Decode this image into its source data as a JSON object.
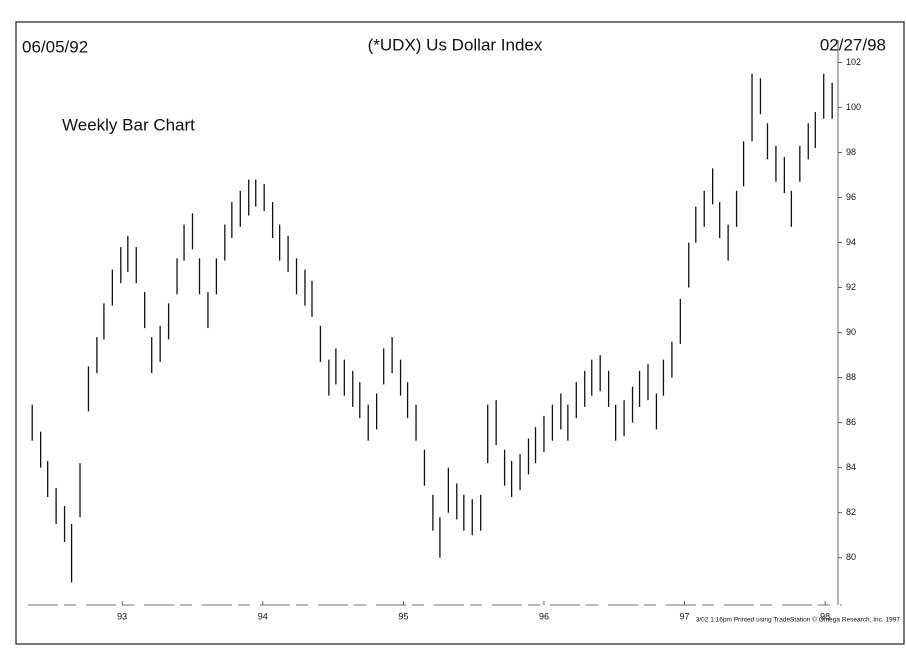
{
  "chart_data": {
    "type": "bar-range",
    "title": "(*UDX) Us Dollar Index",
    "start_date": "06/05/92",
    "end_date": "02/27/98",
    "subtitle": "Weekly Bar Chart",
    "footer": "3/02 1:16pm Printed using TradeStation © Omega Research, Inc. 1997",
    "color": "#111111",
    "x": [
      1992.36,
      1992.42,
      1992.47,
      1992.53,
      1992.59,
      1992.64,
      1992.7,
      1992.76,
      1992.82,
      1992.87,
      1992.93,
      1992.99,
      1993.04,
      1993.1,
      1993.16,
      1993.21,
      1993.27,
      1993.33,
      1993.39,
      1993.44,
      1993.5,
      1993.55,
      1993.61,
      1993.67,
      1993.73,
      1993.78,
      1993.84,
      1993.9,
      1993.95,
      1994.01,
      1994.07,
      1994.12,
      1994.18,
      1994.24,
      1994.3,
      1994.35,
      1994.41,
      1994.47,
      1994.52,
      1994.58,
      1994.64,
      1994.69,
      1994.75,
      1994.81,
      1994.86,
      1994.92,
      1994.98,
      1995.03,
      1995.09,
      1995.15,
      1995.21,
      1995.26,
      1995.32,
      1995.38,
      1995.43,
      1995.49,
      1995.55,
      1995.6,
      1995.66,
      1995.72,
      1995.77,
      1995.83,
      1995.89,
      1995.94,
      1996.0,
      1996.06,
      1996.12,
      1996.17,
      1996.23,
      1996.29,
      1996.34,
      1996.4,
      1996.46,
      1996.51,
      1996.57,
      1996.63,
      1996.68,
      1996.74,
      1996.8,
      1996.85,
      1996.91,
      1996.97,
      1997.03,
      1997.08,
      1997.14,
      1997.2,
      1997.25,
      1997.31,
      1997.37,
      1997.42,
      1997.48,
      1997.54,
      1997.59,
      1997.65,
      1997.71,
      1997.76,
      1997.82,
      1997.88,
      1997.93,
      1997.99,
      1998.05
    ],
    "high": [
      86.8,
      85.6,
      84.3,
      83.1,
      82.3,
      81.5,
      84.2,
      88.5,
      89.8,
      91.3,
      92.8,
      93.8,
      94.3,
      93.8,
      91.8,
      89.8,
      90.3,
      91.3,
      93.3,
      94.8,
      95.3,
      93.3,
      91.8,
      93.3,
      94.8,
      95.8,
      96.3,
      96.8,
      96.8,
      96.6,
      95.8,
      94.8,
      94.3,
      93.3,
      92.8,
      92.3,
      90.3,
      88.8,
      89.3,
      88.8,
      88.3,
      87.8,
      86.8,
      87.3,
      89.3,
      89.8,
      88.8,
      87.8,
      86.8,
      84.8,
      82.8,
      81.8,
      84.0,
      83.3,
      82.8,
      82.6,
      82.8,
      86.8,
      87.0,
      84.8,
      84.3,
      84.6,
      85.3,
      85.8,
      86.3,
      86.8,
      87.3,
      86.8,
      87.8,
      88.3,
      88.8,
      89.0,
      88.3,
      86.8,
      87.0,
      87.6,
      88.3,
      88.6,
      87.3,
      88.8,
      89.6,
      91.5,
      94.0,
      95.6,
      96.3,
      97.3,
      95.8,
      94.8,
      96.3,
      98.5,
      101.5,
      101.3,
      99.3,
      98.3,
      97.8,
      96.3,
      98.3,
      99.3,
      99.8,
      101.5,
      101.1
    ],
    "low": [
      85.2,
      84.0,
      82.7,
      81.5,
      80.7,
      78.9,
      81.8,
      86.5,
      88.2,
      89.7,
      91.2,
      92.2,
      92.7,
      92.2,
      90.2,
      88.2,
      88.7,
      89.7,
      91.7,
      93.2,
      93.7,
      91.7,
      90.2,
      91.7,
      93.2,
      94.2,
      94.7,
      95.2,
      95.6,
      95.4,
      94.2,
      93.2,
      92.7,
      91.7,
      91.2,
      90.7,
      88.7,
      87.2,
      87.7,
      87.2,
      86.7,
      86.2,
      85.2,
      85.7,
      87.7,
      88.2,
      87.2,
      86.2,
      85.2,
      83.2,
      81.2,
      80.0,
      82.0,
      81.7,
      81.2,
      81.0,
      81.2,
      84.2,
      85.0,
      83.2,
      82.7,
      83.0,
      83.7,
      84.2,
      84.7,
      85.2,
      85.7,
      85.2,
      86.2,
      86.7,
      87.2,
      87.4,
      86.7,
      85.2,
      85.4,
      86.0,
      86.7,
      87.0,
      85.7,
      87.2,
      88.0,
      89.5,
      92.0,
      94.0,
      94.7,
      95.7,
      94.2,
      93.2,
      94.7,
      96.5,
      98.5,
      99.7,
      97.7,
      96.7,
      96.2,
      94.7,
      96.7,
      97.7,
      98.2,
      99.5,
      99.5
    ],
    "xlim": [
      1992.33,
      1998.12
    ],
    "xticks": [
      {
        "value": 1993,
        "label": "93"
      },
      {
        "value": 1994,
        "label": "94"
      },
      {
        "value": 1995,
        "label": "95"
      },
      {
        "value": 1996,
        "label": "96"
      },
      {
        "value": 1997,
        "label": "97"
      },
      {
        "value": 1998,
        "label": "98"
      }
    ],
    "ylim": [
      77.9,
      103
    ],
    "yticks": [
      80,
      82,
      84,
      86,
      88,
      90,
      92,
      94,
      96,
      98,
      100,
      102
    ]
  }
}
